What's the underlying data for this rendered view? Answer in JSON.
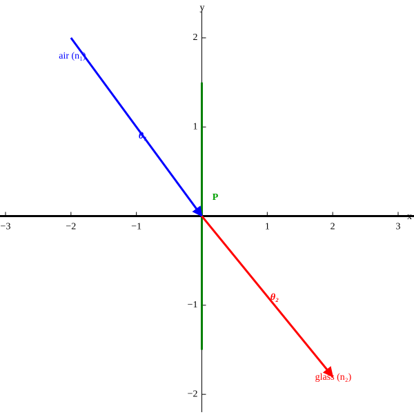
{
  "chart_data": {
    "type": "line",
    "xlabel": "x",
    "ylabel": "y",
    "xlim": [
      -3,
      3
    ],
    "ylim": [
      -2.2,
      2.27
    ],
    "xticks": [
      {
        "value": -3,
        "label": "−3"
      },
      {
        "value": -2,
        "label": "−2"
      },
      {
        "value": -1,
        "label": "−1"
      },
      1,
      2,
      3
    ],
    "yticks": [
      {
        "value": -2,
        "label": "−2"
      },
      {
        "value": -1,
        "label": "−1"
      },
      1,
      2
    ],
    "series": [
      {
        "color": "#0000ff",
        "x": [
          -2,
          0
        ],
        "values": [
          2,
          0
        ],
        "arrow": true
      },
      {
        "color": "#ff0000",
        "x": [
          0,
          2
        ],
        "values": [
          0,
          -1.8
        ],
        "arrow": true
      },
      {
        "color": "#008000",
        "x": [
          0,
          0
        ],
        "values": [
          1.5,
          -1.5
        ],
        "arrow": false
      }
    ],
    "annotations": [
      {
        "text": "air (n₁)",
        "color": "#0000ff"
      },
      {
        "text": "θ₁",
        "color": "#0000ff"
      },
      {
        "text": "P",
        "color": "#00a000"
      },
      {
        "text": "θ₂",
        "color": "#ff0000"
      },
      {
        "text": "glass (n₂)",
        "color": "#ff0000"
      }
    ]
  }
}
